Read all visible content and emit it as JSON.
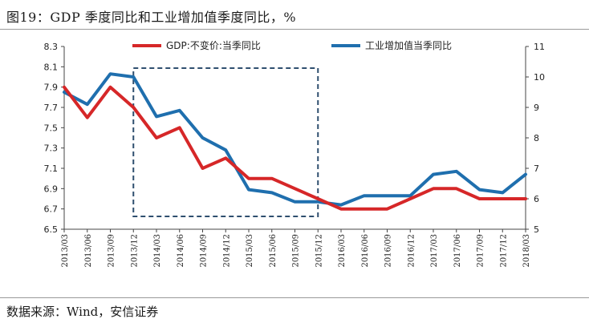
{
  "title": "图19：GDP 季度同比和工业增加值季度同比，%",
  "source": "数据来源：Wind，安信证券",
  "colors": {
    "gdp": "#d62728",
    "industry": "#1f6fae",
    "box": "#2f4f6f",
    "axis": "#444444"
  },
  "chart_data": {
    "type": "line",
    "categories": [
      "2013/03",
      "2013/06",
      "2013/09",
      "2013/12",
      "2014/03",
      "2014/06",
      "2014/09",
      "2014/12",
      "2015/03",
      "2015/06",
      "2015/09",
      "2015/12",
      "2016/03",
      "2016/06",
      "2016/09",
      "2016/12",
      "2017/03",
      "2017/06",
      "2017/09",
      "2017/12",
      "2018/03"
    ],
    "series": [
      {
        "name": "GDP:不变价:当季同比",
        "axis": "left",
        "values": [
          7.9,
          7.6,
          7.9,
          7.7,
          7.4,
          7.5,
          7.1,
          7.2,
          7.0,
          7.0,
          6.9,
          6.8,
          6.7,
          6.7,
          6.7,
          6.8,
          6.9,
          6.9,
          6.8,
          6.8,
          6.8
        ]
      },
      {
        "name": "工业增加值当季同比",
        "axis": "right",
        "values": [
          9.5,
          9.1,
          10.1,
          10.0,
          8.7,
          8.9,
          8.0,
          7.6,
          6.3,
          6.2,
          5.9,
          5.9,
          5.8,
          6.1,
          6.1,
          6.1,
          6.8,
          6.9,
          6.3,
          6.2,
          6.8
        ]
      }
    ],
    "y_left": {
      "range": [
        6.5,
        8.3
      ],
      "ticks": [
        "8.3",
        "8.1",
        "7.9",
        "7.7",
        "7.5",
        "7.3",
        "7.1",
        "6.9",
        "6.7",
        "6.5"
      ]
    },
    "y_right": {
      "range": [
        5,
        11
      ],
      "ticks": [
        "11",
        "10",
        "9",
        "8",
        "7",
        "6",
        "5"
      ]
    },
    "annotation_box": {
      "from": "2013/12",
      "to": "2015/12",
      "style": "dashed"
    },
    "legend_position": "top",
    "grid": false
  }
}
